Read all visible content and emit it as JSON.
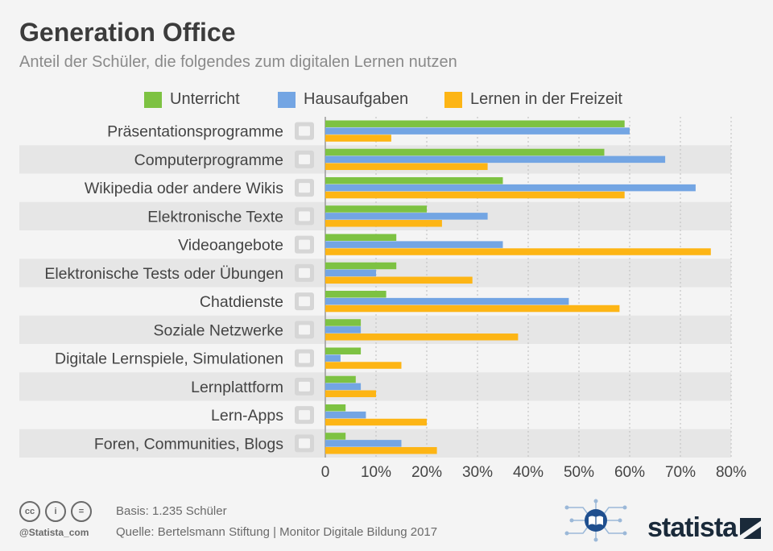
{
  "header": {
    "title": "Generation Office",
    "subtitle": "Anteil der Schüler, die folgendes zum digitalen Lernen nutzen"
  },
  "colors": {
    "unterricht": "#7dc242",
    "hausaufgaben": "#73a5e3",
    "freizeit": "#fdb515",
    "stripe": "#e6e6e6",
    "label": "#444444"
  },
  "chart_data": {
    "type": "bar",
    "orientation": "horizontal",
    "categories": [
      "Präsentationsprogramme",
      "Computerprogramme",
      "Wikipedia oder andere Wikis",
      "Elektronische Texte",
      "Videoangebote",
      "Elektronische Tests oder Übungen",
      "Chatdienste",
      "Soziale Netzwerke",
      "Digitale Lernspiele, Simulationen",
      "Lernplattform",
      "Lern-Apps",
      "Foren, Communities, Blogs"
    ],
    "icons": [
      "presentation-icon",
      "folder-icon",
      "globe-icon",
      "document-icon",
      "play-icon",
      "checklist-icon",
      "chat-icon",
      "network-icon",
      "puzzle-icon",
      "platform-icon",
      "app-icon",
      "forum-icon"
    ],
    "series": [
      {
        "name": "Unterricht",
        "values": [
          59,
          55,
          35,
          20,
          14,
          14,
          12,
          7,
          7,
          6,
          4,
          4
        ]
      },
      {
        "name": "Hausaufgaben",
        "values": [
          60,
          67,
          73,
          32,
          35,
          10,
          48,
          7,
          3,
          7,
          8,
          15
        ]
      },
      {
        "name": "Lernen in der Freizeit",
        "values": [
          13,
          32,
          59,
          23,
          76,
          29,
          58,
          38,
          15,
          10,
          20,
          22
        ]
      }
    ],
    "xlim": [
      0,
      80
    ],
    "xticks": [
      "0",
      "10%",
      "20%",
      "30%",
      "40%",
      "50%",
      "60%",
      "70%",
      "80%"
    ],
    "grid": true,
    "legend_position": "top"
  },
  "footer": {
    "cc_icons": [
      "cc-icon",
      "by-icon",
      "nd-icon"
    ],
    "cc_labels": [
      "cc",
      "i",
      "="
    ],
    "handle": "@Statista_com",
    "basis": "Basis: 1.235 Schüler",
    "source": "Quelle: Bertelsmann Stiftung | Monitor Digitale Bildung 2017",
    "brand": "statista"
  }
}
